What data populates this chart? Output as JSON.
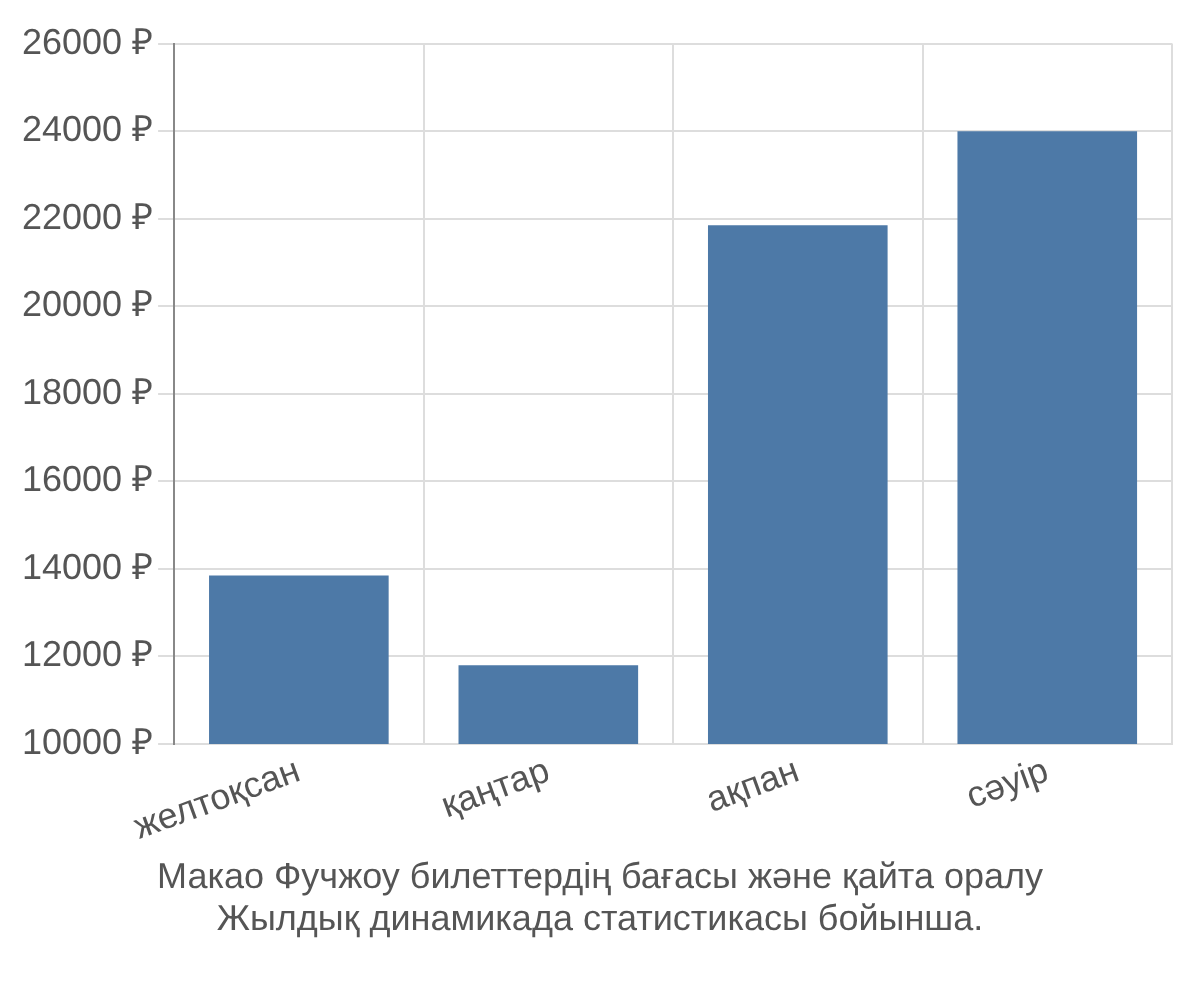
{
  "chart_data": {
    "type": "bar",
    "categories": [
      "желтоқсан",
      "қаңтар",
      "ақпан",
      "сәуір"
    ],
    "series": [
      {
        "color": "#4d79a7",
        "values": [
          13850,
          11800,
          21850,
          24000
        ]
      }
    ],
    "ylim": [
      10000,
      26000
    ],
    "yticks": [
      {
        "value": 10000,
        "label": "10000 ₽"
      },
      {
        "value": 12000,
        "label": "12000 ₽"
      },
      {
        "value": 14000,
        "label": "14000 ₽"
      },
      {
        "value": 16000,
        "label": "16000 ₽"
      },
      {
        "value": 18000,
        "label": "18000 ₽"
      },
      {
        "value": 20000,
        "label": "20000 ₽"
      },
      {
        "value": 22000,
        "label": "22000 ₽"
      },
      {
        "value": 24000,
        "label": "24000 ₽"
      },
      {
        "value": 26000,
        "label": "26000 ₽"
      }
    ],
    "grid": true,
    "annotations": [
      "Макао Фучжоу билеттердің бағасы және қайта оралу",
      "Жылдық динамикада статистикасы бойынша."
    ]
  }
}
